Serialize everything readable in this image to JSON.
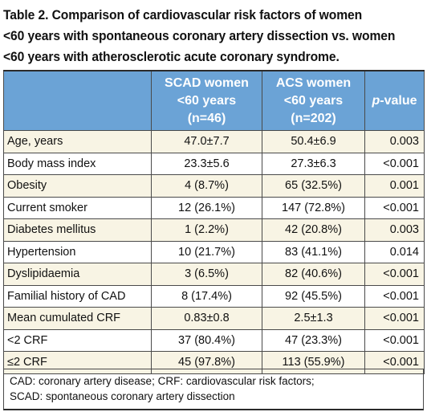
{
  "caption": {
    "line1": "Table 2. Comparison of cardiovascular risk factors of women",
    "line2": "<60 years with spontaneous coronary artery dissection vs. women",
    "line3": "<60 years with atherosclerotic acute coronary syndrome."
  },
  "header": {
    "col1": "",
    "col2": [
      "SCAD women",
      "<60 years",
      "(n=46)"
    ],
    "col3": [
      "ACS women",
      "<60 years",
      "(n=202)"
    ],
    "col4_italic": "p",
    "col4_rest": "-value"
  },
  "rows": [
    {
      "label": "Age, years",
      "scad": "47.0±7.7",
      "acs": "50.4±6.9",
      "p": "0.003"
    },
    {
      "label": "Body mass index",
      "scad": "23.3±5.6",
      "acs": "27.3±6.3",
      "p": "<0.001"
    },
    {
      "label": "Obesity",
      "scad": "4 (8.7%)",
      "acs": "65 (32.5%)",
      "p": "0.001"
    },
    {
      "label": "Current smoker",
      "scad": "12 (26.1%)",
      "acs": "147 (72.8%)",
      "p": "<0.001"
    },
    {
      "label": "Diabetes mellitus",
      "scad": "1 (2.2%)",
      "acs": "42 (20.8%)",
      "p": "0.003"
    },
    {
      "label": "Hypertension",
      "scad": "10 (21.7%)",
      "acs": "83 (41.1%)",
      "p": "0.014"
    },
    {
      "label": "Dyslipidaemia",
      "scad": "3 (6.5%)",
      "acs": "82 (40.6%)",
      "p": "<0.001"
    },
    {
      "label": "Familial history of CAD",
      "scad": "8 (17.4%)",
      "acs": "92 (45.5%)",
      "p": "<0.001"
    },
    {
      "label": "Mean cumulated CRF",
      "scad": "0.83±0.8",
      "acs": "2.5±1.3",
      "p": "<0.001"
    },
    {
      "label": "<2 CRF",
      "scad": "37 (80.4%)",
      "acs": "47 (23.3%)",
      "p": "<0.001"
    },
    {
      "label": "≤2 CRF",
      "scad": "45 (97.8%)",
      "acs": "113 (55.9%)",
      "p": "<0.001"
    }
  ],
  "footnote": {
    "line1": "CAD: coronary artery disease; CRF: cardiovascular risk factors;",
    "line2": "SCAD: spontaneous coronary artery dissection"
  },
  "colors": {
    "header_bg": "#6ba3d6",
    "header_text": "#ffffff",
    "alt_row_bg": "#f8f4e4",
    "border": "#4a4a4a"
  }
}
